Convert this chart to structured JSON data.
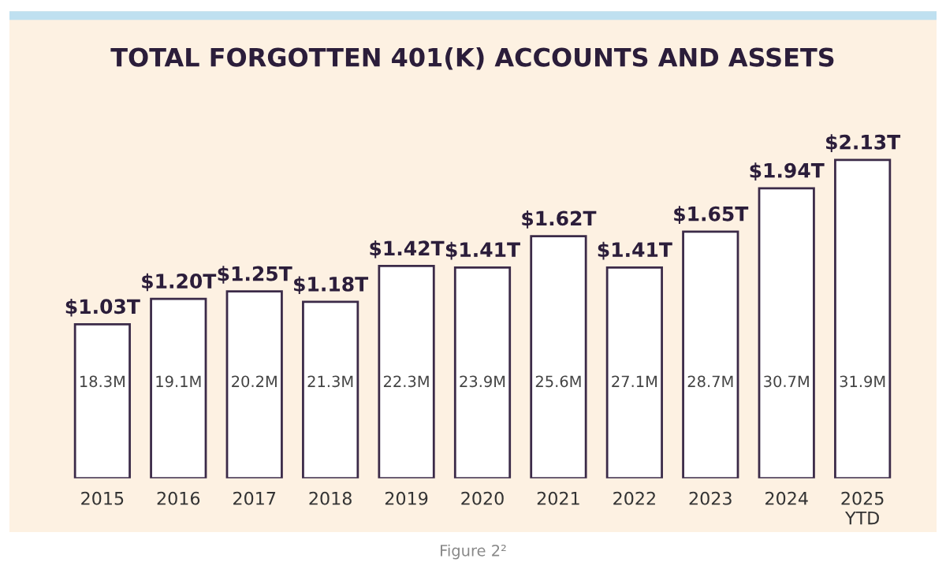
{
  "chart_data": {
    "type": "bar",
    "title": "TOTAL FORGOTTEN 401(K) ACCOUNTS AND ASSETS",
    "categories": [
      "2015",
      "2016",
      "2017",
      "2018",
      "2019",
      "2020",
      "2021",
      "2022",
      "2023",
      "2024",
      "2025\nYTD"
    ],
    "values": [
      1.03,
      1.2,
      1.25,
      1.18,
      1.42,
      1.41,
      1.62,
      1.41,
      1.65,
      1.94,
      2.13
    ],
    "value_labels": [
      "$1.03T",
      "$1.20T",
      "$1.25T",
      "$1.18T",
      "$1.42T",
      "$1.41T",
      "$1.62T",
      "$1.41T",
      "$1.65T",
      "$1.94T",
      "$2.13T"
    ],
    "color": "#ffffff",
    "annotations": [
      "18.3M",
      "19.1M",
      "20.2M",
      "21.3M",
      "22.3M",
      "23.9M",
      "25.6M",
      "27.1M",
      "28.7M",
      "30.7M",
      "31.9M",
      "Figure 2²"
    ],
    "grid": false,
    "legend": false
  }
}
